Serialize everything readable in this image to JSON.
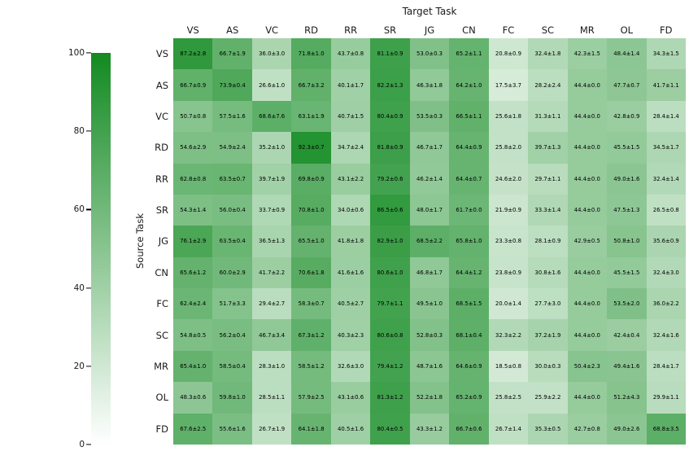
{
  "chart_data": {
    "type": "heatmap",
    "title": "Target Task",
    "xlabel": "Target Task",
    "ylabel": "Source Task",
    "columns": [
      "VS",
      "AS",
      "VC",
      "RD",
      "RR",
      "SR",
      "JG",
      "CN",
      "FC",
      "SC",
      "MR",
      "OL",
      "FD"
    ],
    "rows": [
      "VS",
      "AS",
      "VC",
      "RD",
      "RR",
      "SR",
      "JG",
      "CN",
      "FC",
      "SC",
      "MR",
      "OL",
      "FD"
    ],
    "cells": [
      [
        "87.2±2.8",
        "66.7±1.9",
        "36.0±3.0",
        "71.8±1.0",
        "43.7±0.8",
        "81.1±0.9",
        "53.0±0.3",
        "65.2±1.1",
        "20.8±0.9",
        "32.4±1.8",
        "42.3±1.5",
        "48.4±1.4",
        "34.3±1.5"
      ],
      [
        "66.7±0.9",
        "73.9±0.4",
        "26.6±1.0",
        "66.7±3.2",
        "40.1±1.7",
        "82.2±1.3",
        "46.3±1.8",
        "64.2±1.0",
        "17.5±3.7",
        "28.2±2.4",
        "44.4±0.0",
        "47.7±0.7",
        "41.7±1.1"
      ],
      [
        "50.7±0.8",
        "57.5±1.6",
        "68.6±7.6",
        "63.1±1.9",
        "40.7±1.5",
        "80.4±0.9",
        "53.5±0.3",
        "66.5±1.1",
        "25.6±1.8",
        "31.3±1.1",
        "44.4±0.0",
        "42.8±0.9",
        "28.4±1.4"
      ],
      [
        "54.6±2.9",
        "54.9±2.4",
        "35.2±1.0",
        "92.3±0.7",
        "34.7±2.4",
        "81.8±0.9",
        "46.7±1.7",
        "64.4±0.9",
        "25.8±2.0",
        "39.7±1.3",
        "44.4±0.0",
        "45.5±1.5",
        "34.5±1.7"
      ],
      [
        "62.8±0.8",
        "63.5±0.7",
        "39.7±1.9",
        "69.8±0.9",
        "43.1±2.2",
        "79.2±0.6",
        "46.2±1.4",
        "64.4±0.7",
        "24.6±2.0",
        "29.7±1.1",
        "44.4±0.0",
        "49.0±1.6",
        "32.4±1.4"
      ],
      [
        "54.3±1.4",
        "56.0±0.4",
        "33.7±0.9",
        "70.8±1.0",
        "34.0±0.6",
        "86.5±0.6",
        "48.0±1.7",
        "61.7±0.0",
        "21.9±0.9",
        "33.3±1.4",
        "44.4±0.0",
        "47.5±1.3",
        "26.5±0.8"
      ],
      [
        "76.1±2.9",
        "63.5±0.4",
        "36.5±1.3",
        "65.5±1.0",
        "41.8±1.8",
        "82.9±1.0",
        "68.5±2.2",
        "65.8±1.0",
        "23.3±0.8",
        "28.1±0.9",
        "42.9±0.5",
        "50.8±1.0",
        "35.6±0.9"
      ],
      [
        "65.6±1.2",
        "60.0±2.9",
        "41.7±2.2",
        "70.6±1.8",
        "41.6±1.6",
        "80.6±1.0",
        "46.8±1.7",
        "64.4±1.2",
        "23.8±0.9",
        "30.8±1.6",
        "44.4±0.0",
        "45.5±1.5",
        "32.4±3.0"
      ],
      [
        "62.4±2.4",
        "51.7±3.3",
        "29.4±2.7",
        "58.3±0.7",
        "40.5±2.7",
        "79.7±1.1",
        "49.5±1.0",
        "68.5±1.5",
        "20.0±1.4",
        "27.7±3.0",
        "44.4±0.0",
        "53.5±2.0",
        "36.0±2.2"
      ],
      [
        "54.8±0.5",
        "56.2±0.4",
        "46.7±3.4",
        "67.3±1.2",
        "40.3±2.3",
        "80.6±0.8",
        "52.8±0.3",
        "68.1±0.4",
        "32.3±2.2",
        "37.2±1.9",
        "44.4±0.0",
        "42.4±0.4",
        "32.4±1.6"
      ],
      [
        "65.4±1.0",
        "58.5±0.4",
        "28.3±1.0",
        "58.5±1.2",
        "32.6±3.0",
        "79.4±1.2",
        "48.7±1.6",
        "64.6±0.9",
        "18.5±0.8",
        "30.0±0.3",
        "50.4±2.3",
        "49.4±1.6",
        "28.4±1.7"
      ],
      [
        "48.3±0.6",
        "59.8±1.0",
        "28.5±1.1",
        "57.9±2.5",
        "43.1±0.6",
        "81.3±1.2",
        "52.2±1.8",
        "65.2±0.9",
        "25.8±2.5",
        "25.9±2.2",
        "44.4±0.0",
        "51.2±4.3",
        "29.9±1.1"
      ],
      [
        "67.6±2.5",
        "55.6±1.6",
        "26.7±1.9",
        "64.1±1.8",
        "40.5±1.6",
        "80.4±0.5",
        "43.3±1.2",
        "66.7±0.6",
        "26.7±1.4",
        "35.3±0.5",
        "42.7±0.8",
        "49.0±2.6",
        "68.8±3.5"
      ]
    ],
    "colorbar": {
      "min": 0,
      "max": 100,
      "ticks": [
        0,
        20,
        40,
        60,
        80,
        100
      ],
      "low_color": "#ffffff",
      "high_color": "#128a21",
      "position": "left"
    },
    "grid": false,
    "annotation_format": "value±std"
  }
}
